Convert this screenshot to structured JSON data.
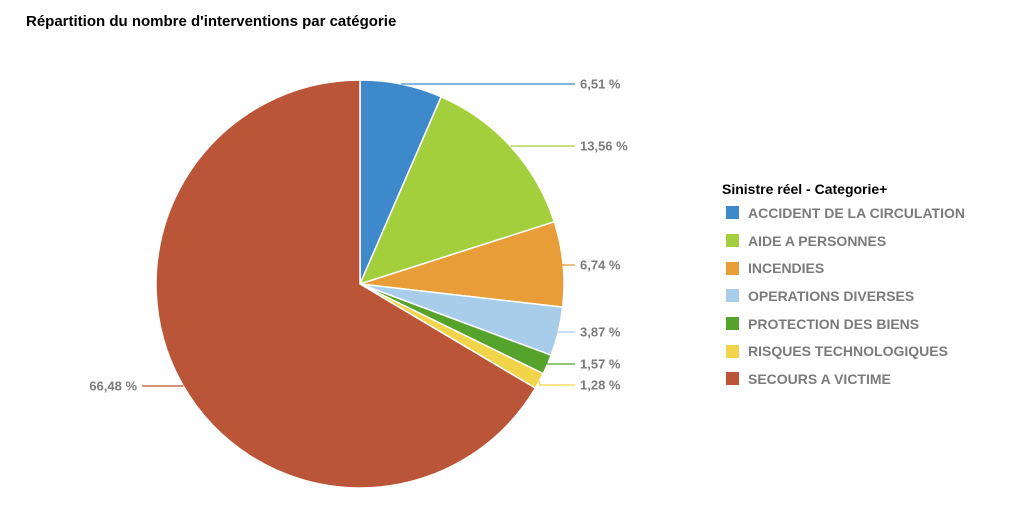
{
  "chart_data": {
    "type": "pie",
    "title": "Répartition du nombre d'interventions par catégorie",
    "legend_title": "Sinistre réel - Categorie+",
    "legend_placement": "right",
    "slices": [
      {
        "name": "ACCIDENT DE LA CIRCULATION",
        "value": 6.51,
        "label": "6,51 %",
        "color": "#3d89cc"
      },
      {
        "name": "AIDE A PERSONNES",
        "value": 13.56,
        "label": "13,56 %",
        "color": "#a4cf3c"
      },
      {
        "name": "INCENDIES",
        "value": 6.74,
        "label": "6,74 %",
        "color": "#e89d38"
      },
      {
        "name": "OPERATIONS DIVERSES",
        "value": 3.87,
        "label": "3,87 %",
        "color": "#a8cdea"
      },
      {
        "name": "PROTECTION DES BIENS",
        "value": 1.57,
        "label": "1,57 %",
        "color": "#55a32a"
      },
      {
        "name": "RISQUES TECHNOLOGIQUES",
        "value": 1.28,
        "label": "1,28 %",
        "color": "#f2d44a"
      },
      {
        "name": "SECOURS A VICTIME",
        "value": 66.48,
        "label": "66,48 %",
        "color": "#bb5538"
      }
    ]
  }
}
